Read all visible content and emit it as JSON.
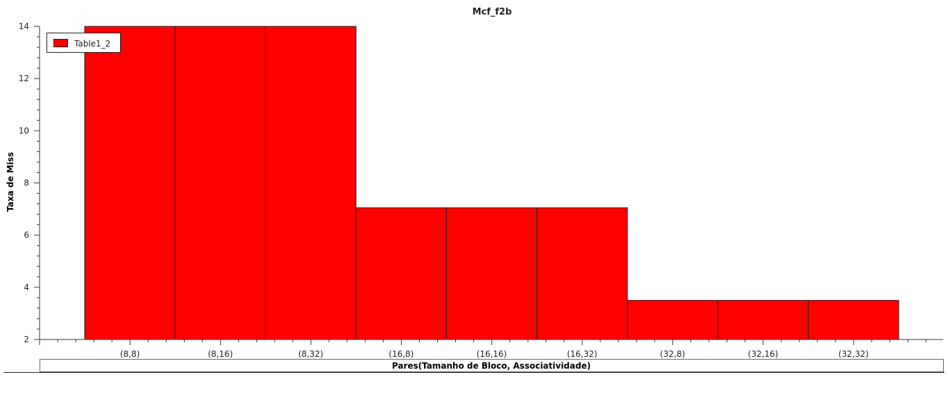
{
  "chart_data": {
    "type": "bar",
    "title": "Mcf_f2b",
    "xlabel": "Pares(Tamanho de Bloco, Associatividade)",
    "ylabel": "Taxa de Miss",
    "categories": [
      "(8,8)",
      "(8,16)",
      "(8,32)",
      "(16,8)",
      "(16,16)",
      "(16,32)",
      "(32,8)",
      "(32,16)",
      "(32,32)"
    ],
    "series": [
      {
        "name": "Table1_2",
        "color": "#ff0000",
        "values": [
          14,
          14,
          14,
          7.05,
          7.05,
          7.05,
          3.5,
          3.5,
          3.5
        ]
      }
    ],
    "ylim": [
      2,
      14
    ],
    "yticks": [
      "2",
      "4",
      "6",
      "8",
      "10",
      "12",
      "14"
    ],
    "grid": false,
    "legend_position": "top-left"
  }
}
